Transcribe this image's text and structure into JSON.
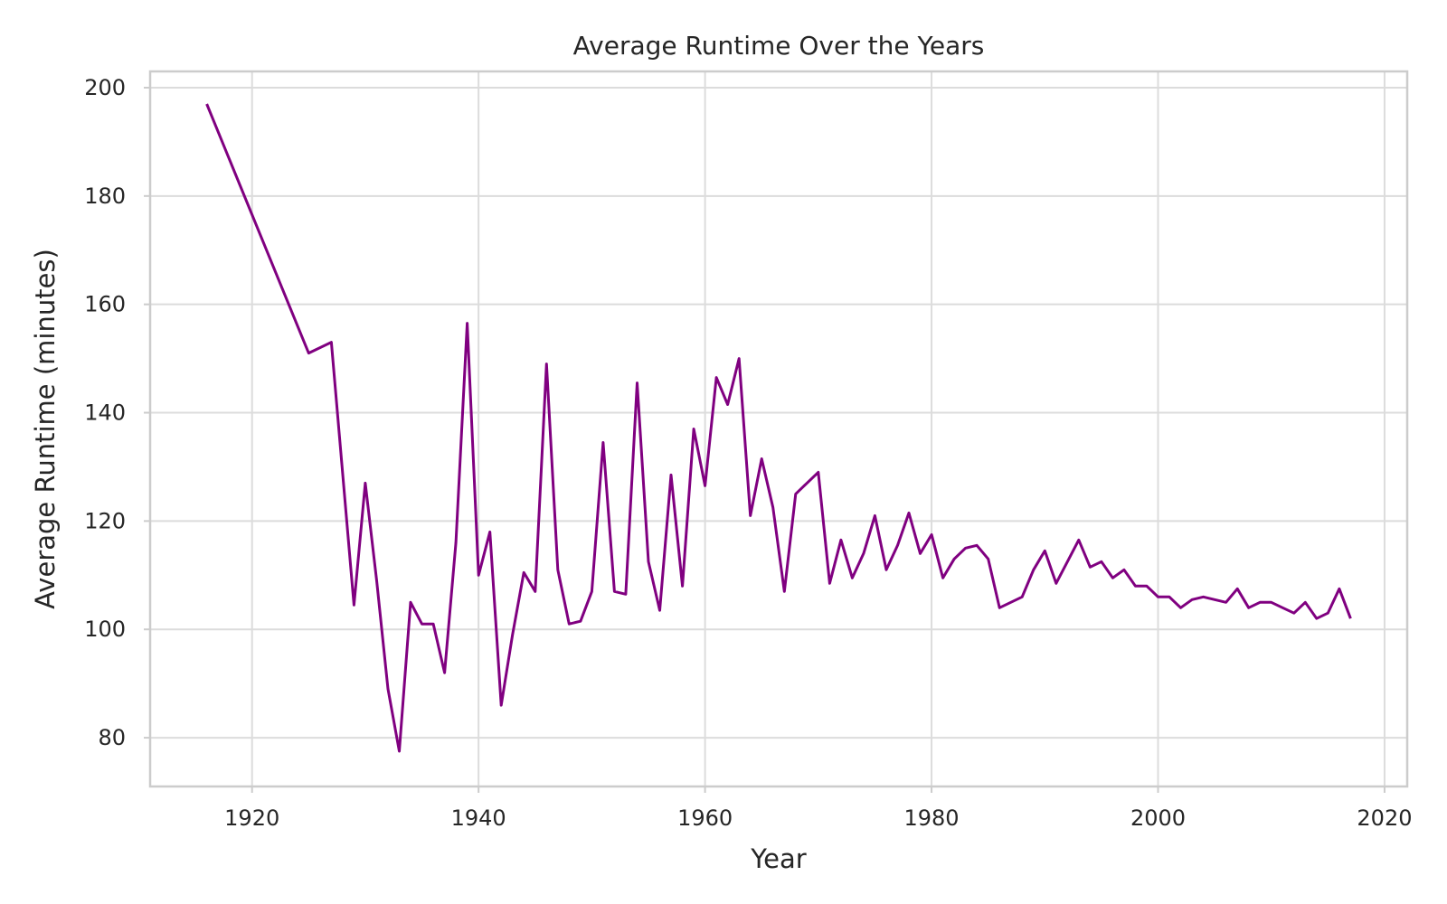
{
  "chart_data": {
    "type": "line",
    "title": "Average Runtime Over the Years",
    "xlabel": "Year",
    "ylabel": "Average Runtime (minutes)",
    "xlim": [
      1911,
      2022
    ],
    "ylim": [
      71,
      203
    ],
    "xticks": [
      1920,
      1940,
      1960,
      1980,
      2000,
      2020
    ],
    "yticks": [
      80,
      100,
      120,
      140,
      160,
      180,
      200
    ],
    "grid": true,
    "legend": "none",
    "line_color": "#800080",
    "series": [
      {
        "x": [
          1916,
          1925,
          1927,
          1929,
          1930,
          1931,
          1932,
          1933,
          1934,
          1935,
          1936,
          1937,
          1938,
          1939,
          1940,
          1941,
          1942,
          1943,
          1944,
          1945,
          1946,
          1947,
          1948,
          1949,
          1950,
          1951,
          1952,
          1953,
          1954,
          1955,
          1956,
          1957,
          1958,
          1959,
          1960,
          1961,
          1962,
          1963,
          1964,
          1965,
          1966,
          1967,
          1968,
          1969,
          1970,
          1971,
          1972,
          1973,
          1974,
          1975,
          1976,
          1977,
          1978,
          1979,
          1980,
          1981,
          1982,
          1983,
          1984,
          1985,
          1986,
          1987,
          1988,
          1989,
          1990,
          1991,
          1992,
          1993,
          1994,
          1995,
          1996,
          1997,
          1998,
          1999,
          2000,
          2001,
          2002,
          2003,
          2004,
          2005,
          2006,
          2007,
          2008,
          2009,
          2010,
          2011,
          2012,
          2013,
          2014,
          2015,
          2016,
          2017
        ],
        "values": [
          197,
          151,
          153,
          104.5,
          127,
          109,
          89,
          77.5,
          105,
          101,
          101,
          92,
          116,
          156.5,
          110,
          118,
          86,
          99,
          110.5,
          107,
          149,
          111,
          101,
          101.5,
          107,
          134.5,
          107,
          106.5,
          145.5,
          112.5,
          103.5,
          128.5,
          108,
          137,
          126.5,
          146.5,
          141.5,
          150,
          121,
          131.5,
          122.5,
          107,
          125,
          127,
          129,
          108.5,
          116.5,
          109.5,
          114,
          121,
          111,
          115.5,
          121.5,
          114,
          117.5,
          109.5,
          113,
          115,
          115.5,
          113,
          104,
          105,
          106,
          111,
          114.5,
          108.5,
          112.5,
          116.5,
          111.5,
          112.5,
          109.5,
          111,
          108,
          108,
          106,
          106,
          104,
          105.5,
          106,
          105.5,
          105,
          107.5,
          104,
          105,
          105,
          104,
          103,
          105,
          102,
          103,
          107.5,
          102
        ]
      }
    ]
  }
}
